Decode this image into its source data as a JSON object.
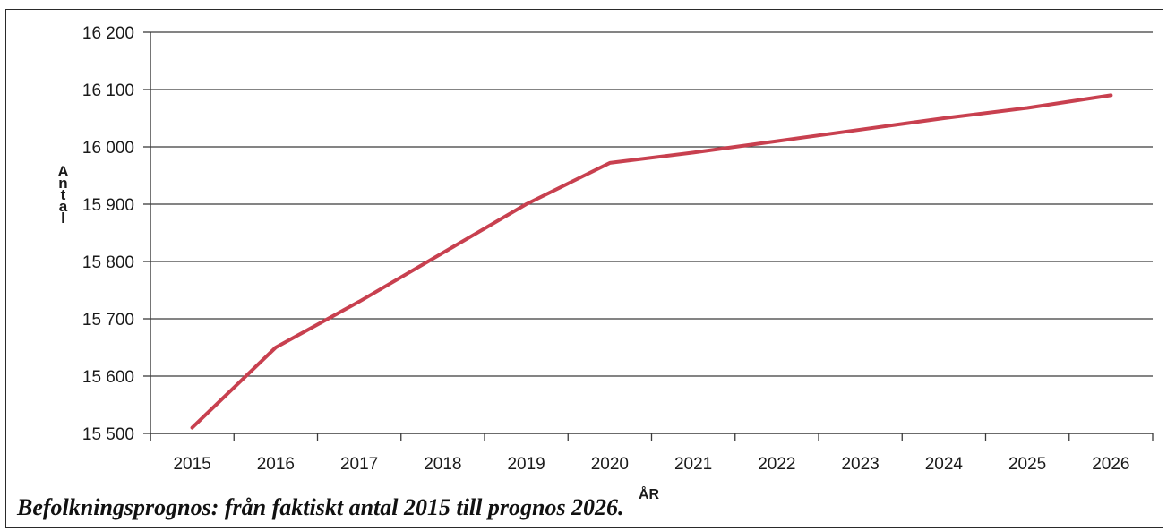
{
  "chart_data": {
    "type": "line",
    "x": [
      "2015",
      "2016",
      "2017",
      "2018",
      "2019",
      "2020",
      "2021",
      "2022",
      "2023",
      "2024",
      "2025",
      "2026"
    ],
    "series": [
      {
        "values": [
          15510,
          15650,
          15730,
          15815,
          15900,
          15972,
          15990,
          16010,
          16030,
          16050,
          16068,
          16090
        ],
        "color": "#c8404f"
      }
    ],
    "xlabel": "ÅR",
    "ylabel": "Antal",
    "ylim": [
      15500,
      16200
    ],
    "yticks": [
      15500,
      15600,
      15700,
      15800,
      15900,
      16000,
      16100,
      16200
    ],
    "ytick_labels": [
      "15 500",
      "15 600",
      "15 700",
      "15 800",
      "15 900",
      "16 000",
      "16 100",
      "16 200"
    ],
    "grid": true,
    "legend": "none",
    "caption": "Befolkningsprognos: från faktiskt antal 2015 till prognos 2026."
  }
}
